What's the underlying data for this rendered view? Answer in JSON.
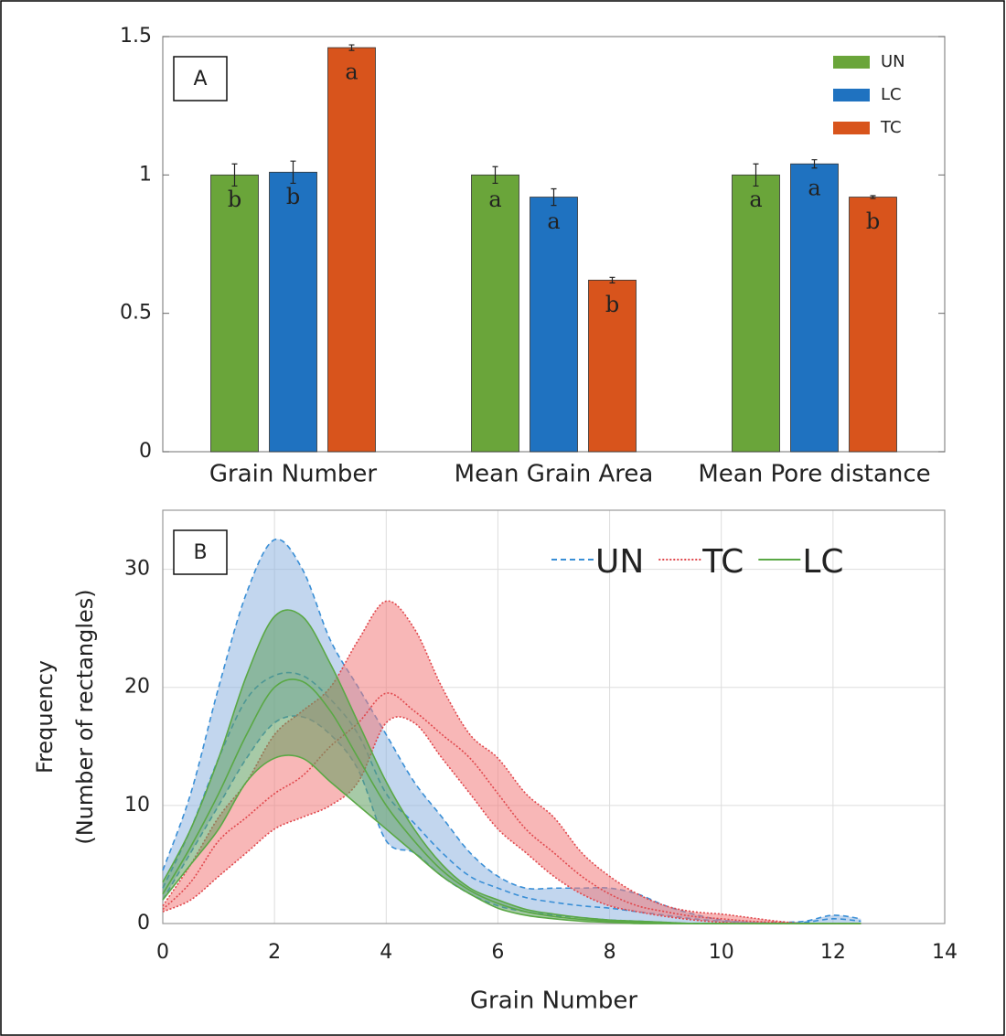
{
  "chart_data": [
    {
      "type": "bar",
      "panel": "A",
      "categories": [
        "Grain Number",
        "Mean Grain Area",
        "Mean Pore distance"
      ],
      "series": [
        {
          "name": "UN",
          "color": "#6aa53a",
          "values": [
            1,
            1,
            1
          ],
          "errors": [
            0.04,
            0.03,
            0.04
          ],
          "letters": [
            "b",
            "a",
            "a"
          ]
        },
        {
          "name": "LC",
          "color": "#1f72c0",
          "values": [
            1.01,
            0.92,
            1.04
          ],
          "errors": [
            0.04,
            0.03,
            0.015
          ],
          "letters": [
            "b",
            "a",
            "a"
          ]
        },
        {
          "name": "TC",
          "color": "#d8541c",
          "values": [
            1.46,
            0.62,
            0.92
          ],
          "errors": [
            0.01,
            0.01,
            0.005
          ],
          "letters": [
            "a",
            "b",
            "b"
          ]
        }
      ],
      "ylim": [
        0,
        1.5
      ],
      "yticks": [
        0,
        0.5,
        1,
        1.5
      ],
      "legend": "upper right"
    },
    {
      "type": "band",
      "panel": "B",
      "xlabel": "Grain Number",
      "ylabel": [
        "Frequency",
        "(Number of rectangles)"
      ],
      "x": [
        0,
        0.5,
        1,
        1.5,
        2,
        2.5,
        3,
        3.5,
        4,
        4.5,
        5,
        5.5,
        6,
        6.5,
        7,
        7.5,
        8,
        8.5,
        9,
        9.5,
        10,
        10.5,
        11,
        11.5,
        12,
        12.5
      ],
      "series": [
        {
          "name": "UN",
          "color": "#3a8fd6",
          "fill": "#8fb4e0",
          "dash": "6,4",
          "values": [
            3,
            8,
            14,
            19,
            21,
            21,
            19,
            16,
            11,
            8.5,
            6,
            4,
            3,
            2.2,
            1.8,
            1.5,
            1.3,
            1,
            0.7,
            0.4,
            0.2,
            0.1,
            0,
            0.1,
            0.4,
            0.2
          ],
          "upper": [
            4.5,
            11,
            20,
            28,
            32.5,
            30,
            24,
            20,
            16,
            12,
            9,
            6,
            4,
            3,
            3,
            3,
            3,
            2.5,
            1.5,
            0.8,
            0.3,
            0.1,
            0.1,
            0.2,
            0.7,
            0.4
          ],
          "lower": [
            2,
            6,
            10,
            14,
            17,
            17.5,
            16,
            13,
            7,
            6,
            4,
            2.5,
            1.5,
            1,
            0.7,
            0.5,
            0.3,
            0.2,
            0.1,
            0,
            0,
            0,
            0,
            0,
            0,
            0
          ]
        },
        {
          "name": "TC",
          "color": "#e0474c",
          "fill": "#f27c7c",
          "dash": "2,2",
          "values": [
            1.2,
            3.5,
            7,
            9,
            11,
            12.5,
            15,
            17,
            19.5,
            18,
            16,
            14,
            11,
            8,
            6,
            4,
            2.5,
            1.5,
            1,
            0.6,
            0.4,
            0.2,
            0.1,
            0,
            0,
            0
          ],
          "upper": [
            1.5,
            5,
            9,
            12,
            16,
            18,
            20,
            24,
            27.3,
            25,
            20,
            16,
            14,
            11,
            9,
            6,
            4,
            2.5,
            1.5,
            1,
            0.8,
            0.5,
            0.2,
            0,
            0,
            0
          ],
          "lower": [
            1,
            2,
            4,
            6,
            8,
            9,
            10,
            12,
            17,
            17,
            14,
            11,
            8,
            6,
            4,
            2.5,
            1.5,
            1,
            0.6,
            0.3,
            0.1,
            0,
            0,
            0,
            0,
            0
          ]
        },
        {
          "name": "LC",
          "color": "#5aa845",
          "fill": "#5f9e5f",
          "dash": "none",
          "values": [
            2.5,
            6.5,
            11,
            16,
            20,
            20.5,
            18,
            14,
            10,
            7,
            4.5,
            2.8,
            1.7,
            1,
            0.6,
            0.35,
            0.2,
            0.1,
            0,
            0,
            0,
            0,
            0,
            0,
            0,
            0
          ],
          "upper": [
            3.5,
            8,
            14,
            21,
            26,
            26,
            22,
            17,
            12,
            8,
            5,
            3,
            2,
            1.2,
            0.8,
            0.5,
            0.3,
            0.2,
            0.1,
            0,
            0,
            0,
            0,
            0,
            0,
            0
          ],
          "lower": [
            2,
            5,
            8,
            12,
            14,
            14,
            12,
            10,
            8,
            6,
            4,
            2.5,
            1.3,
            0.7,
            0.4,
            0.2,
            0.1,
            0,
            0,
            0,
            0,
            0,
            0,
            0,
            0,
            0
          ]
        }
      ],
      "xlim": [
        0,
        14
      ],
      "xticks": [
        0,
        2,
        4,
        6,
        8,
        10,
        12,
        14
      ],
      "ylim": [
        0,
        35
      ],
      "yticks": [
        0,
        10,
        20,
        30
      ],
      "grid": true,
      "legend": "upper right"
    }
  ]
}
